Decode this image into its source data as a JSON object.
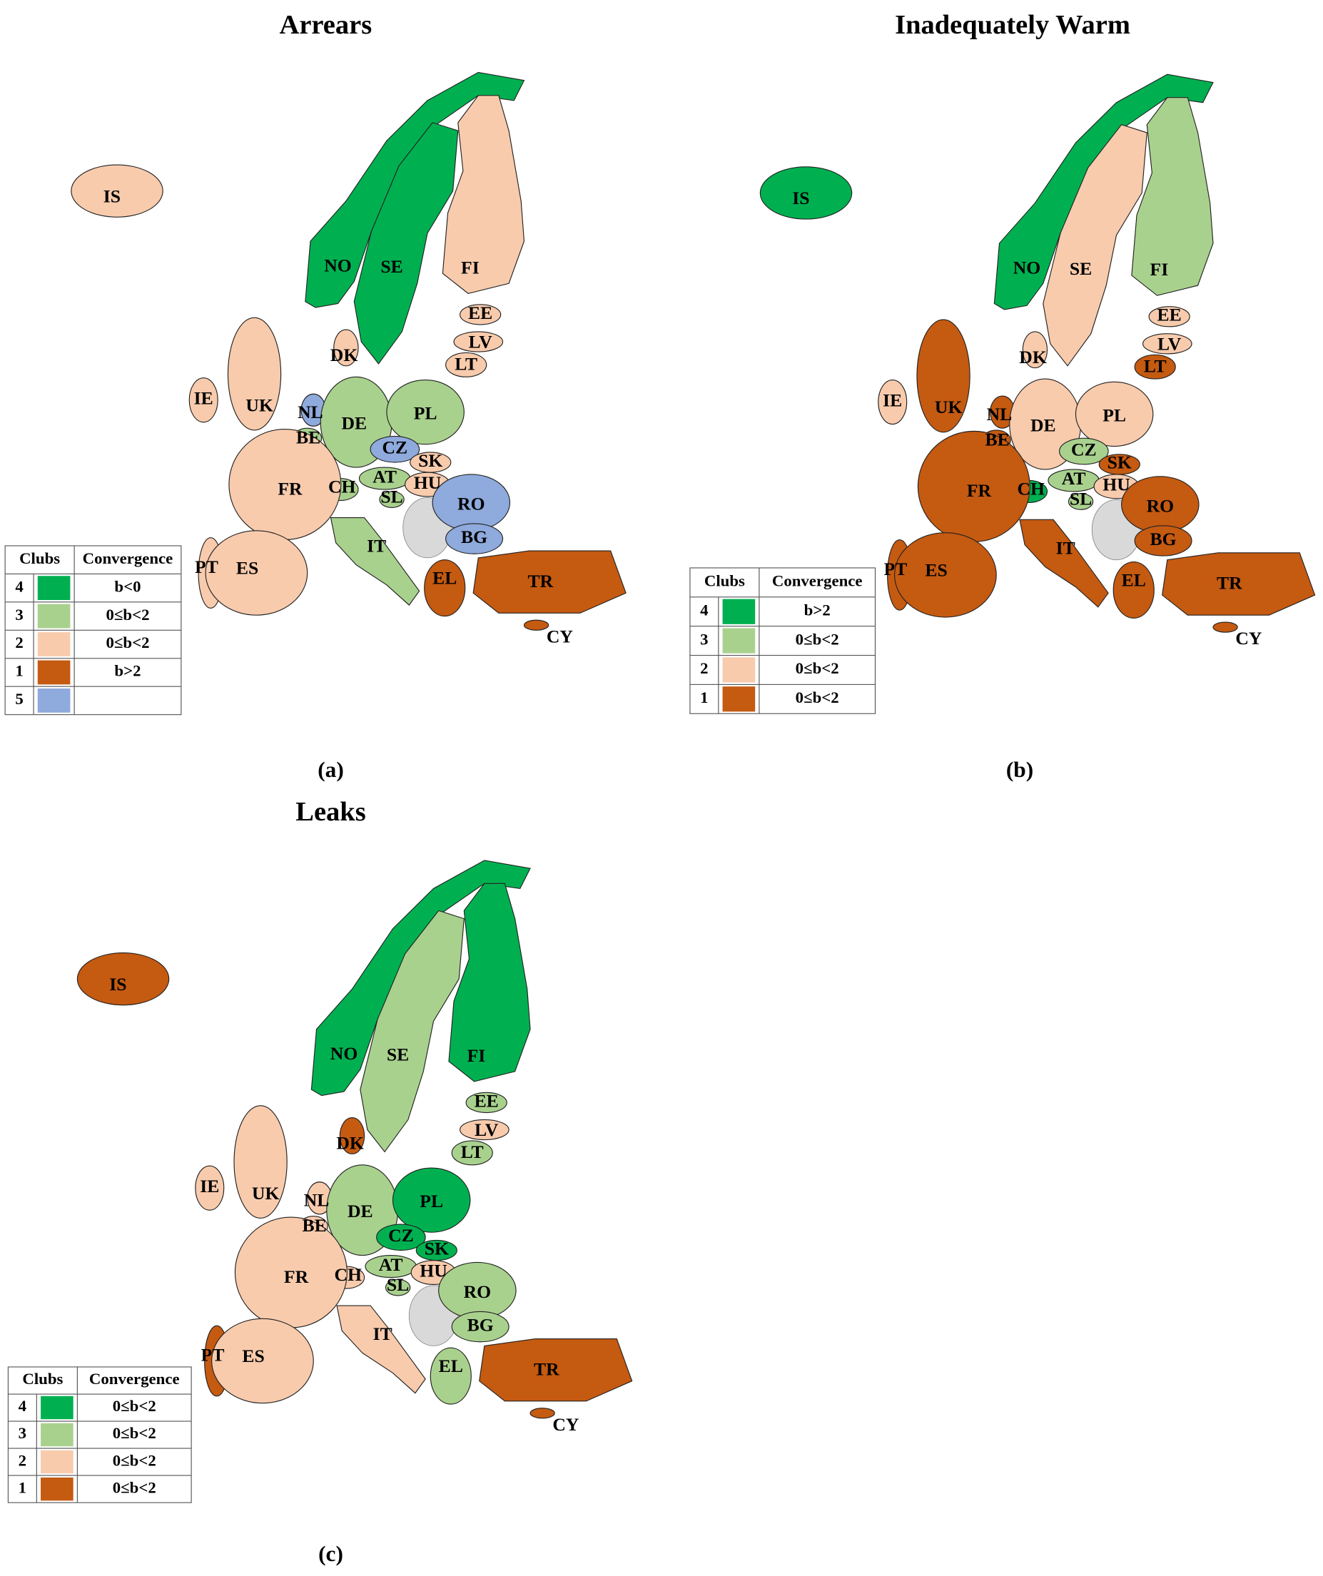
{
  "panels": [
    {
      "title": "Arrears",
      "caption": "(a)",
      "legend": {
        "headers": [
          "Clubs",
          "Convergence"
        ],
        "rows": [
          {
            "club": 4,
            "color": "#00b050",
            "convergence": "b<0"
          },
          {
            "club": 3,
            "color": "#a9d18e",
            "convergence": "0≤b<2"
          },
          {
            "club": 2,
            "color": "#f8cbad",
            "convergence": "0≤b<2"
          },
          {
            "club": 1,
            "color": "#c55a11",
            "convergence": "b>2"
          },
          {
            "club": 5,
            "color": "#8faadc"
          }
        ]
      },
      "countries": [
        {
          "code": "IS",
          "club": 2
        },
        {
          "code": "NO",
          "club": 4
        },
        {
          "code": "SE",
          "club": 4
        },
        {
          "code": "FI",
          "club": 2
        },
        {
          "code": "EE",
          "club": 2
        },
        {
          "code": "LV",
          "club": 2
        },
        {
          "code": "LT",
          "club": 2
        },
        {
          "code": "DK",
          "club": 2
        },
        {
          "code": "IE",
          "club": 2
        },
        {
          "code": "UK",
          "club": 2
        },
        {
          "code": "NL",
          "club": 5
        },
        {
          "code": "BE",
          "club": 3
        },
        {
          "code": "DE",
          "club": 3
        },
        {
          "code": "PL",
          "club": 3
        },
        {
          "code": "CZ",
          "club": 5
        },
        {
          "code": "SK",
          "club": 2
        },
        {
          "code": "AT",
          "club": 3
        },
        {
          "code": "CH",
          "club": 3
        },
        {
          "code": "SL",
          "club": 3
        },
        {
          "code": "HU",
          "club": 2
        },
        {
          "code": "FR",
          "club": 2
        },
        {
          "code": "RO",
          "club": 5
        },
        {
          "code": "BG",
          "club": 5
        },
        {
          "code": "IT",
          "club": 3
        },
        {
          "code": "PT",
          "club": 2
        },
        {
          "code": "ES",
          "club": 2
        },
        {
          "code": "EL",
          "club": 1
        },
        {
          "code": "TR",
          "club": 1
        },
        {
          "code": "CY",
          "club": 1
        }
      ]
    },
    {
      "title": "Inadequately Warm",
      "caption": "(b)",
      "legend": {
        "headers": [
          "Clubs",
          "Convergence"
        ],
        "rows": [
          {
            "club": 4,
            "color": "#00b050",
            "convergence": "b>2"
          },
          {
            "club": 3,
            "color": "#a9d18e",
            "convergence": "0≤b<2"
          },
          {
            "club": 2,
            "color": "#f8cbad",
            "convergence": "0≤b<2"
          },
          {
            "club": 1,
            "color": "#c55a11",
            "convergence": "0≤b<2"
          }
        ]
      },
      "countries": [
        {
          "code": "IS",
          "club": 4
        },
        {
          "code": "NO",
          "club": 4
        },
        {
          "code": "SE",
          "club": 2
        },
        {
          "code": "FI",
          "club": 3
        },
        {
          "code": "EE",
          "club": 2
        },
        {
          "code": "LV",
          "club": 2
        },
        {
          "code": "LT",
          "club": 1
        },
        {
          "code": "DK",
          "club": 2
        },
        {
          "code": "IE",
          "club": 2
        },
        {
          "code": "UK",
          "club": 1
        },
        {
          "code": "NL",
          "club": 1
        },
        {
          "code": "BE",
          "club": 1
        },
        {
          "code": "DE",
          "club": 2
        },
        {
          "code": "PL",
          "club": 2
        },
        {
          "code": "CZ",
          "club": 3
        },
        {
          "code": "SK",
          "club": 1
        },
        {
          "code": "AT",
          "club": 3
        },
        {
          "code": "CH",
          "club": 4
        },
        {
          "code": "SL",
          "club": 3
        },
        {
          "code": "HU",
          "club": 2
        },
        {
          "code": "FR",
          "club": 1
        },
        {
          "code": "RO",
          "club": 1
        },
        {
          "code": "BG",
          "club": 1
        },
        {
          "code": "IT",
          "club": 1
        },
        {
          "code": "PT",
          "club": 1
        },
        {
          "code": "ES",
          "club": 1
        },
        {
          "code": "EL",
          "club": 1
        },
        {
          "code": "TR",
          "club": 1
        },
        {
          "code": "CY",
          "club": 1
        }
      ]
    },
    {
      "title": "Leaks",
      "caption": "(c)",
      "legend": {
        "headers": [
          "Clubs",
          "Convergence"
        ],
        "rows": [
          {
            "club": 4,
            "color": "#00b050",
            "convergence": "0≤b<2"
          },
          {
            "club": 3,
            "color": "#a9d18e",
            "convergence": "0≤b<2"
          },
          {
            "club": 2,
            "color": "#f8cbad",
            "convergence": "0≤b<2"
          },
          {
            "club": 1,
            "color": "#c55a11",
            "convergence": "0≤b<2"
          }
        ]
      },
      "countries": [
        {
          "code": "IS",
          "club": 1
        },
        {
          "code": "NO",
          "club": 4
        },
        {
          "code": "SE",
          "club": 3
        },
        {
          "code": "FI",
          "club": 4
        },
        {
          "code": "EE",
          "club": 3
        },
        {
          "code": "LV",
          "club": 2
        },
        {
          "code": "LT",
          "club": 3
        },
        {
          "code": "DK",
          "club": 1
        },
        {
          "code": "IE",
          "club": 2
        },
        {
          "code": "UK",
          "club": 2
        },
        {
          "code": "NL",
          "club": 2
        },
        {
          "code": "BE",
          "club": 2
        },
        {
          "code": "DE",
          "club": 3
        },
        {
          "code": "PL",
          "club": 4
        },
        {
          "code": "CZ",
          "club": 4
        },
        {
          "code": "SK",
          "club": 4
        },
        {
          "code": "AT",
          "club": 3
        },
        {
          "code": "CH",
          "club": 2
        },
        {
          "code": "SL",
          "club": 3
        },
        {
          "code": "HU",
          "club": 2
        },
        {
          "code": "FR",
          "club": 2
        },
        {
          "code": "RO",
          "club": 3
        },
        {
          "code": "BG",
          "club": 3
        },
        {
          "code": "IT",
          "club": 2
        },
        {
          "code": "PT",
          "club": 1
        },
        {
          "code": "ES",
          "club": 2
        },
        {
          "code": "EL",
          "club": 3
        },
        {
          "code": "TR",
          "club": 1
        },
        {
          "code": "CY",
          "club": 1
        }
      ]
    }
  ]
}
